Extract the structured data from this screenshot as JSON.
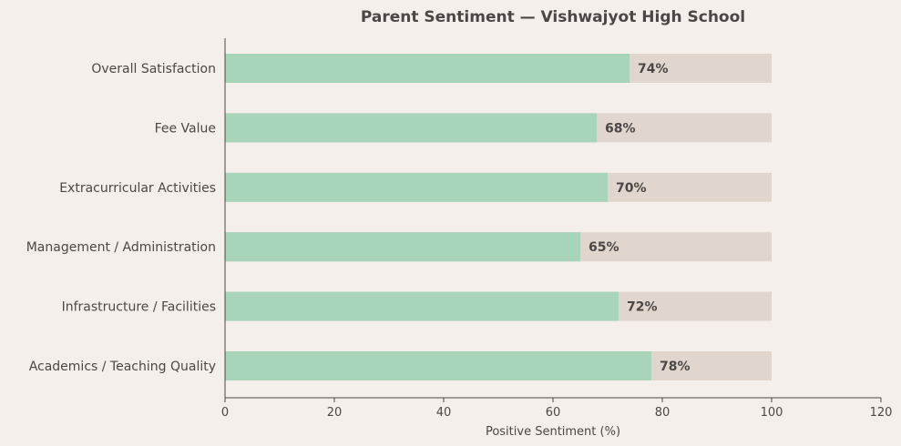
{
  "chart_data": {
    "type": "bar",
    "orientation": "horizontal",
    "title": "Parent Sentiment — Vishwajyot High School",
    "xlabel": "Positive Sentiment (%)",
    "ylabel": "",
    "xlim": [
      0,
      120
    ],
    "xticks": [
      0,
      20,
      40,
      60,
      80,
      100,
      120
    ],
    "categories": [
      "Overall Satisfaction",
      "Fee Value",
      "Extracurricular Activities",
      "Management / Administration",
      "Infrastructure / Facilities",
      "Academics / Teaching Quality"
    ],
    "values": [
      74,
      68,
      70,
      65,
      72,
      78
    ],
    "background_max": 100,
    "value_suffix": "%",
    "grid": false,
    "legend": "none",
    "colors": {
      "bar": "#a8d4b9",
      "background_bar": "#e0d6cd",
      "axis": "#4a4746",
      "page_background": "#f5efeb"
    }
  }
}
